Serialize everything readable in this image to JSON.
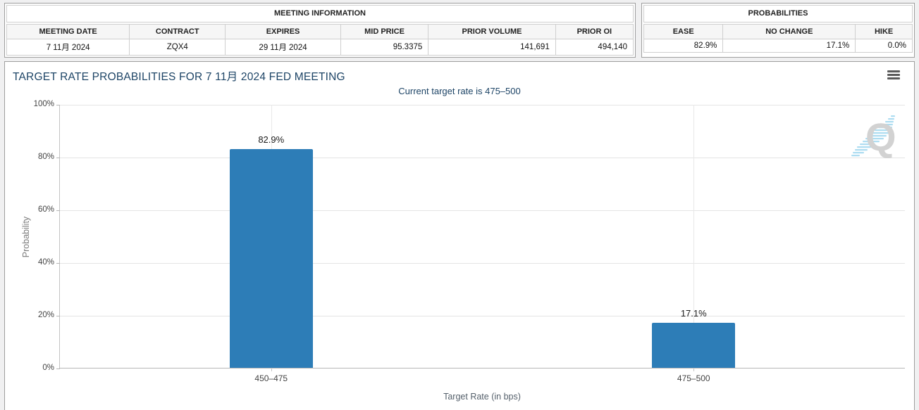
{
  "meeting_information": {
    "title": "MEETING INFORMATION",
    "columns": [
      "MEETING DATE",
      "CONTRACT",
      "EXPIRES",
      "MID PRICE",
      "PRIOR VOLUME",
      "PRIOR OI"
    ],
    "values": [
      "7 11月 2024",
      "ZQX4",
      "29 11月 2024",
      "95.3375",
      "141,691",
      "494,140"
    ]
  },
  "probabilities_panel": {
    "title": "PROBABILITIES",
    "columns": [
      "EASE",
      "NO CHANGE",
      "HIKE"
    ],
    "values": [
      "82.9%",
      "17.1%",
      "0.0%"
    ]
  },
  "chart": {
    "title": "TARGET RATE PROBABILITIES FOR 7 11月 2024 FED MEETING",
    "subtitle": "Current target rate is 475–500",
    "watermark_letter": "Q"
  },
  "chart_data": {
    "type": "bar",
    "title": "TARGET RATE PROBABILITIES FOR 7 11月 2024 FED MEETING",
    "subtitle": "Current target rate is 475–500",
    "categories": [
      "450–475",
      "475–500"
    ],
    "values": [
      82.9,
      17.1
    ],
    "value_labels": [
      "82.9%",
      "17.1%"
    ],
    "xlabel": "Target Rate (in bps)",
    "ylabel": "Probability",
    "ylim": [
      0,
      100
    ],
    "yticks": [
      0,
      20,
      40,
      60,
      80,
      100
    ],
    "ytick_labels": [
      "0%",
      "20%",
      "40%",
      "60%",
      "80%",
      "100%"
    ],
    "bar_color": "#2d7db7",
    "grid": true,
    "legend": false
  },
  "colors": {
    "accent_navy": "#1d4466",
    "bar_blue": "#2d7db7",
    "watermark_gray": "#d2d2d2",
    "watermark_blue": "#aeddf1",
    "page_background": "#f0f0f1"
  }
}
